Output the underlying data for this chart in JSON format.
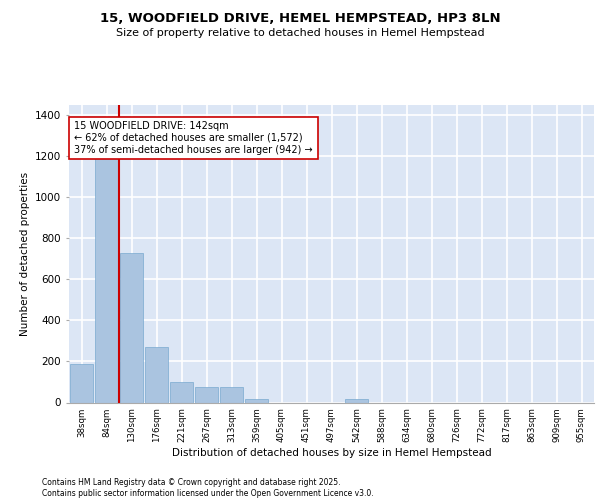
{
  "title_line1": "15, WOODFIELD DRIVE, HEMEL HEMPSTEAD, HP3 8LN",
  "title_line2": "Size of property relative to detached houses in Hemel Hempstead",
  "xlabel": "Distribution of detached houses by size in Hemel Hempstead",
  "ylabel": "Number of detached properties",
  "categories": [
    "38sqm",
    "84sqm",
    "130sqm",
    "176sqm",
    "221sqm",
    "267sqm",
    "313sqm",
    "359sqm",
    "405sqm",
    "451sqm",
    "497sqm",
    "542sqm",
    "588sqm",
    "634sqm",
    "680sqm",
    "726sqm",
    "772sqm",
    "817sqm",
    "863sqm",
    "909sqm",
    "955sqm"
  ],
  "values": [
    190,
    1190,
    730,
    270,
    100,
    75,
    75,
    15,
    0,
    0,
    0,
    15,
    0,
    0,
    0,
    0,
    0,
    0,
    0,
    0,
    0
  ],
  "bar_color": "#aac4e0",
  "bar_edge_color": "#7aaad0",
  "background_color": "#dce6f5",
  "grid_color": "#ffffff",
  "vline_color": "#cc0000",
  "annotation_text": "15 WOODFIELD DRIVE: 142sqm\n← 62% of detached houses are smaller (1,572)\n37% of semi-detached houses are larger (942) →",
  "annotation_box_color": "#ffffff",
  "annotation_box_edge": "#cc0000",
  "ylim": [
    0,
    1450
  ],
  "yticks": [
    0,
    200,
    400,
    600,
    800,
    1000,
    1200,
    1400
  ],
  "footer_line1": "Contains HM Land Registry data © Crown copyright and database right 2025.",
  "footer_line2": "Contains public sector information licensed under the Open Government Licence v3.0."
}
